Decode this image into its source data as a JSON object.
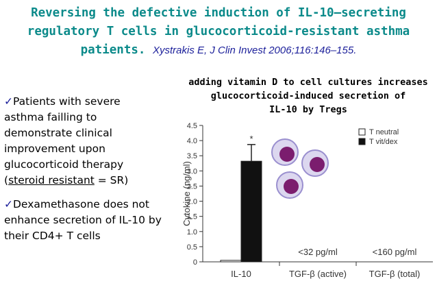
{
  "title": {
    "line1": "Reversing the defective induction of IL-10–secreting",
    "line2": "regulatory T cells in glucocorticoid-resistant asthma",
    "line3": "patients.",
    "citation": "Xystrakis E, J Clin Invest 2006;116:146–155."
  },
  "bullets": [
    {
      "check": "✓",
      "pre": "Patients with severe asthma failling to demonstrate clinical improvement upon glucocorticoid therapy (",
      "emph": "steroid resistant",
      "post": " = SR)"
    },
    {
      "check": "✓",
      "text": "Dexamethasone does not enhance secretion of IL-10 by their CD4+ T cells"
    }
  ],
  "note": {
    "line1": "adding vitamin D to cell cultures increases",
    "line2": "glucocorticoid-induced secretion of",
    "line3": "IL-10 by Tregs"
  },
  "chart_data": {
    "type": "bar",
    "ylabel": "Cytokine (ng/ml)",
    "ylim": [
      0,
      4.5
    ],
    "yticks": [
      "0",
      "0.5",
      "1.0",
      "1.5",
      "2.0",
      "2.5",
      "3.0",
      "3.5",
      "4.0",
      "4.5"
    ],
    "categories": [
      "IL-10",
      "TGF-β (active)",
      "TGF-β (total)"
    ],
    "series": [
      {
        "name": "T neutral",
        "values": [
          0.05,
          null,
          null
        ],
        "color": "#ffffff"
      },
      {
        "name": "T vit/dex",
        "values": [
          3.32,
          null,
          null
        ],
        "error": [
          0.55,
          null,
          null
        ],
        "color": "#111111"
      }
    ],
    "annotations": {
      "significance": "*",
      "active": "<32 pg/ml",
      "total": "<160 pg/ml"
    },
    "legend": "top-right",
    "grid": false
  }
}
